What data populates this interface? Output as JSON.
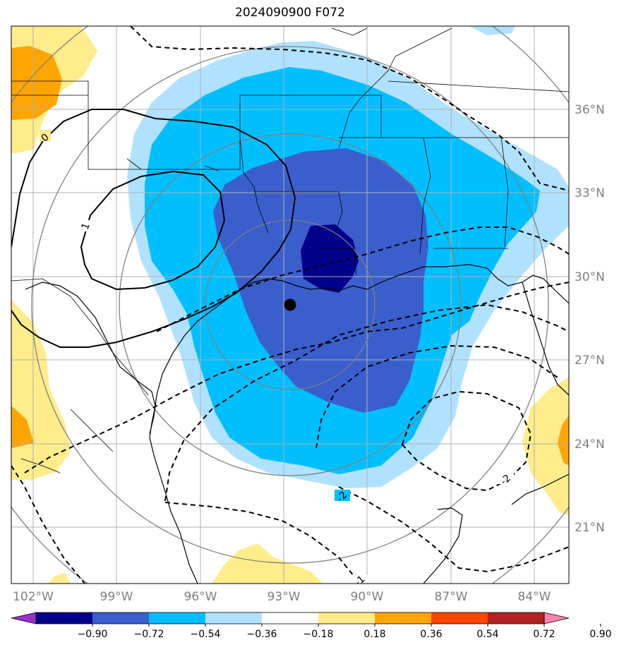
{
  "title": "2024090900 F072",
  "lon_ticks": [
    "102°W",
    "99°W",
    "96°W",
    "93°W",
    "90°W",
    "87°W",
    "84°W"
  ],
  "lat_ticks": [
    "36°N",
    "33°N",
    "30°N",
    "27°N",
    "24°N",
    "21°N"
  ],
  "colorbar": {
    "labels": [
      "−0.90",
      "−0.72",
      "−0.54",
      "−0.36",
      "−0.18",
      "0.18",
      "0.36",
      "0.54",
      "0.72",
      "0.90"
    ],
    "colors": [
      "#9932cc",
      "#00008b",
      "#3a5fcd",
      "#00bfff",
      "#b0e2ff",
      "#ffffff",
      "#ffec8b",
      "#ffa500",
      "#ff4500",
      "#b22222",
      "#ff82ab"
    ]
  },
  "contour_labels": {
    "zero": "0",
    "one": "1",
    "neg_two_a": "-2",
    "neg_two_b": "-2",
    "neg_one": "-1"
  },
  "colors": {
    "grid": "#b0b0b0",
    "range_rings": "#808080",
    "coast": "#000000"
  },
  "storm_center": {
    "lon": "92.7°W",
    "lat": "29.0°N"
  }
}
